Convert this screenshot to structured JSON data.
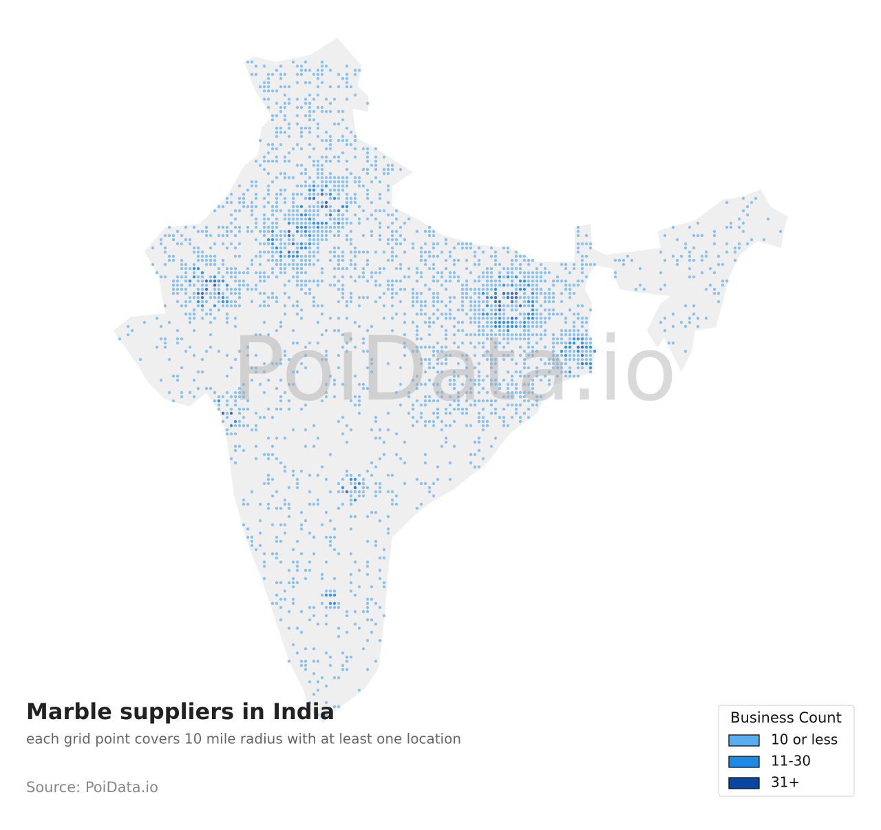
{
  "map": {
    "title": "Marble suppliers in India",
    "subtitle": "each grid point covers 10 mile radius with at least one location",
    "source": "Source: PoiData.io",
    "watermark": "PoiData.io",
    "legend": {
      "title": "Business Count",
      "items": [
        {
          "label": "10 or less",
          "color": "#5aaef0"
        },
        {
          "label": "11-30",
          "color": "#1f8ae6"
        },
        {
          "label": "31+",
          "color": "#0b47a1"
        }
      ]
    }
  }
}
